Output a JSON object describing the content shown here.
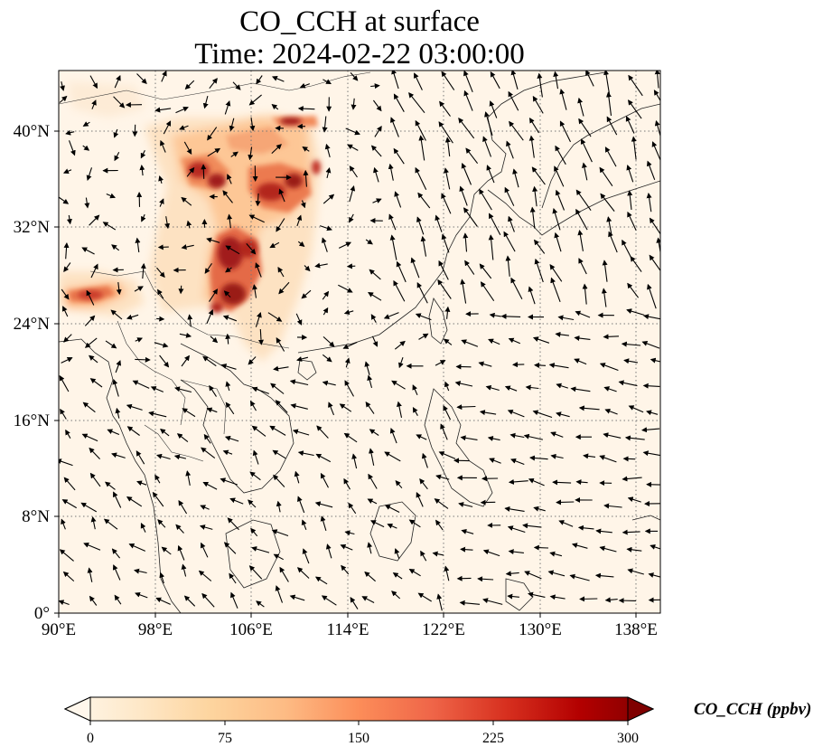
{
  "title": {
    "line1": "CO_CCH at surface",
    "line2": "Time: 2024-02-22 03:00:00"
  },
  "map": {
    "variable": "CO_CCH",
    "level": "surface",
    "projection": "PlateCarree",
    "lon_range": [
      90,
      140
    ],
    "lat_range": [
      0,
      45
    ],
    "gridlines": "dotted",
    "features": [
      "coastlines",
      "country-borders",
      "wind-vectors"
    ],
    "lon_ticks": [
      "90°E",
      "98°E",
      "106°E",
      "114°E",
      "122°E",
      "130°E",
      "138°E"
    ],
    "lat_ticks": [
      "0°",
      "8°N",
      "16°N",
      "24°N",
      "32°N",
      "40°N"
    ]
  },
  "colorbar": {
    "label": "CO_CCH (ppbv)",
    "ticks": [
      "0",
      "75",
      "150",
      "225",
      "300"
    ],
    "range": [
      0,
      300
    ],
    "extend": "both",
    "colormap": "OrRd",
    "colors": [
      "#fff7ec",
      "#fee8c8",
      "#fdd49e",
      "#fdbb84",
      "#fc8d59",
      "#ef6548",
      "#d7301f",
      "#b30000",
      "#7f0000"
    ]
  }
}
